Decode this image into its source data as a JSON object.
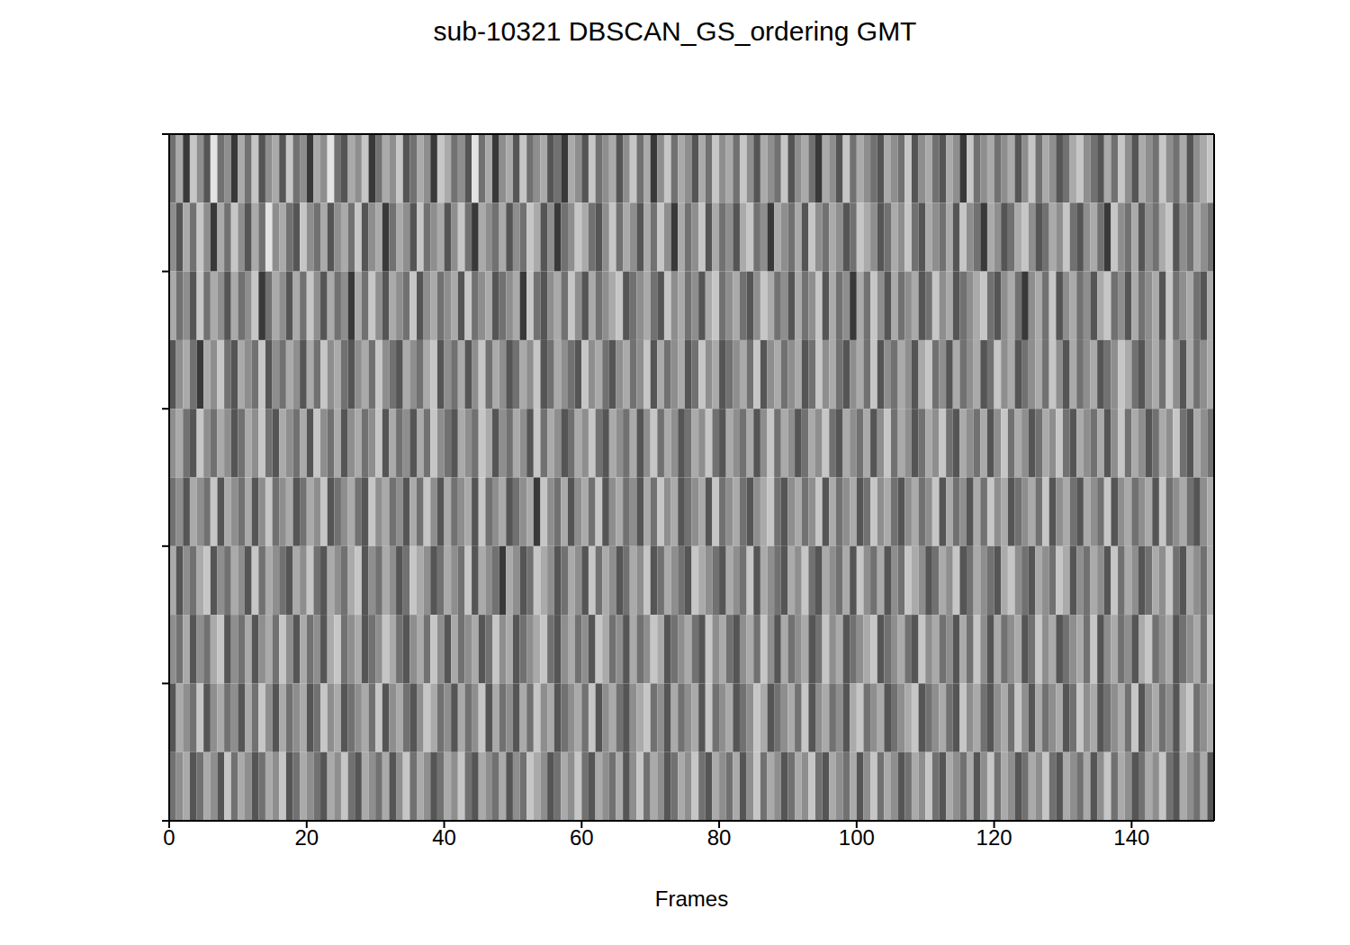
{
  "chart_data": {
    "type": "heatmap",
    "title": "sub-10321 DBSCAN_GS_ordering GMT",
    "x_label": "Frames",
    "xlim": [
      0,
      152
    ],
    "xticks": [
      0,
      20,
      40,
      60,
      80,
      100,
      120,
      140
    ],
    "ylim": [
      0,
      10
    ],
    "yticks": [
      0,
      2,
      4,
      6,
      8,
      10
    ],
    "tick_labels": "x",
    "zlim": [
      0,
      9
    ],
    "cells": [
      [
        4,
        6,
        2,
        7,
        5,
        3,
        8,
        4,
        5,
        2,
        6,
        4,
        7,
        3,
        5,
        6,
        3,
        7,
        4,
        5,
        2,
        6,
        5,
        8,
        4,
        3,
        6,
        5,
        7,
        2,
        4,
        6,
        5,
        7,
        3,
        4,
        6,
        5,
        2,
        7,
        6,
        4,
        5,
        3,
        8,
        4,
        6,
        2,
        5,
        6,
        3,
        7,
        4,
        5,
        6,
        3,
        4,
        2,
        6,
        5,
        3,
        7,
        4,
        5,
        6,
        3,
        5,
        7,
        4,
        6,
        2,
        5,
        7,
        4,
        6,
        5,
        3,
        6,
        4,
        7,
        5,
        6,
        4,
        7,
        5,
        3,
        6,
        5,
        4,
        7,
        3,
        5,
        6,
        4,
        2,
        6,
        5,
        3,
        7,
        4,
        6,
        5,
        4,
        3,
        6,
        5,
        4,
        7,
        3,
        5,
        6,
        4,
        3,
        6,
        5,
        2,
        7,
        4,
        5,
        6,
        4,
        5,
        6,
        3,
        5,
        7,
        4,
        6,
        5,
        3,
        4,
        6,
        7,
        5,
        4,
        3,
        6,
        4,
        7,
        5,
        3,
        6,
        5,
        4,
        7,
        5,
        4,
        6,
        3,
        5,
        6,
        7
      ],
      [
        5,
        3,
        6,
        4,
        7,
        5,
        2,
        6,
        4,
        7,
        5,
        3,
        6,
        4,
        8,
        5,
        6,
        4,
        3,
        7,
        5,
        4,
        6,
        3,
        5,
        6,
        4,
        7,
        3,
        5,
        6,
        2,
        4,
        6,
        5,
        3,
        7,
        4,
        5,
        6,
        3,
        5,
        7,
        4,
        2,
        6,
        5,
        4,
        6,
        3,
        5,
        4,
        7,
        6,
        3,
        5,
        2,
        4,
        5,
        7,
        6,
        4,
        3,
        5,
        7,
        4,
        6,
        5,
        3,
        6,
        4,
        7,
        5,
        2,
        6,
        4,
        5,
        7,
        3,
        6,
        4,
        5,
        3,
        6,
        7,
        4,
        5,
        2,
        6,
        5,
        4,
        6,
        3,
        7,
        5,
        4,
        6,
        5,
        3,
        4,
        7,
        6,
        5,
        3,
        4,
        6,
        5,
        7,
        4,
        3,
        6,
        5,
        4,
        6,
        3,
        7,
        5,
        4,
        2,
        6,
        5,
        3,
        4,
        6,
        7,
        5,
        3,
        4,
        6,
        5,
        7,
        4,
        3,
        5,
        6,
        4,
        2,
        7,
        5,
        4,
        6,
        3,
        5,
        4,
        6,
        7,
        3,
        5,
        4,
        6,
        5,
        4
      ],
      [
        6,
        4,
        5,
        3,
        7,
        4,
        6,
        5,
        3,
        6,
        4,
        5,
        7,
        2,
        4,
        6,
        5,
        3,
        6,
        4,
        7,
        5,
        3,
        6,
        4,
        5,
        2,
        6,
        4,
        7,
        5,
        3,
        6,
        5,
        4,
        7,
        3,
        5,
        6,
        4,
        5,
        6,
        3,
        7,
        4,
        5,
        6,
        3,
        4,
        5,
        6,
        2,
        7,
        4,
        3,
        5,
        6,
        4,
        7,
        5,
        3,
        6,
        4,
        5,
        6,
        7,
        3,
        4,
        5,
        6,
        4,
        3,
        7,
        5,
        6,
        4,
        5,
        3,
        6,
        7,
        4,
        5,
        6,
        4,
        3,
        5,
        7,
        6,
        4,
        5,
        3,
        6,
        4,
        5,
        7,
        3,
        6,
        4,
        5,
        2,
        6,
        4,
        7,
        5,
        3,
        6,
        4,
        5,
        6,
        3,
        4,
        7,
        5,
        6,
        3,
        4,
        5,
        6,
        7,
        4,
        3,
        5,
        6,
        4,
        2,
        5,
        6,
        4,
        7,
        3,
        5,
        6,
        4,
        5,
        3,
        6,
        7,
        4,
        5,
        3,
        6,
        4,
        5,
        6,
        3,
        7,
        4,
        5,
        6,
        4,
        3,
        6
      ],
      [
        3,
        5,
        6,
        4,
        2,
        6,
        5,
        7,
        4,
        3,
        6,
        5,
        4,
        7,
        3,
        5,
        4,
        6,
        5,
        3,
        6,
        4,
        7,
        5,
        6,
        4,
        3,
        5,
        6,
        4,
        7,
        5,
        4,
        3,
        6,
        5,
        4,
        6,
        7,
        3,
        5,
        4,
        6,
        3,
        5,
        7,
        4,
        6,
        5,
        3,
        4,
        6,
        5,
        7,
        3,
        4,
        6,
        5,
        4,
        3,
        7,
        5,
        6,
        4,
        3,
        5,
        6,
        4,
        5,
        7,
        3,
        6,
        4,
        5,
        6,
        3,
        4,
        7,
        5,
        6,
        3,
        4,
        5,
        6,
        4,
        7,
        3,
        5,
        6,
        4,
        5,
        6,
        3,
        4,
        7,
        5,
        6,
        4,
        3,
        5,
        6,
        4,
        7,
        3,
        5,
        4,
        6,
        5,
        3,
        6,
        7,
        4,
        5,
        3,
        6,
        4,
        5,
        6,
        3,
        4,
        7,
        5,
        6,
        3,
        4,
        5,
        6,
        4,
        7,
        5,
        3,
        6,
        4,
        5,
        6,
        3,
        4,
        5,
        7,
        6,
        4,
        3,
        5,
        6,
        4,
        7,
        5,
        3,
        6,
        4,
        5,
        6
      ],
      [
        5,
        6,
        4,
        3,
        7,
        5,
        4,
        6,
        5,
        3,
        4,
        6,
        5,
        7,
        4,
        3,
        6,
        5,
        4,
        6,
        3,
        7,
        5,
        4,
        6,
        3,
        5,
        6,
        4,
        5,
        7,
        3,
        6,
        4,
        5,
        3,
        6,
        4,
        7,
        5,
        4,
        3,
        6,
        5,
        4,
        7,
        6,
        3,
        5,
        4,
        6,
        5,
        3,
        7,
        4,
        6,
        5,
        3,
        4,
        6,
        5,
        7,
        4,
        3,
        6,
        5,
        4,
        6,
        3,
        5,
        7,
        4,
        6,
        5,
        3,
        4,
        6,
        5,
        7,
        4,
        3,
        6,
        5,
        4,
        6,
        3,
        5,
        7,
        4,
        6,
        5,
        3,
        4,
        6,
        5,
        7,
        4,
        3,
        6,
        5,
        4,
        6,
        3,
        5,
        7,
        4,
        6,
        5,
        3,
        4,
        6,
        5,
        7,
        4,
        3,
        6,
        5,
        4,
        6,
        3,
        5,
        7,
        4,
        6,
        5,
        3,
        4,
        6,
        5,
        7,
        4,
        3,
        6,
        5,
        4,
        6,
        3,
        5,
        7,
        4,
        6,
        5,
        3,
        4,
        6,
        5,
        7,
        4,
        3,
        6,
        5,
        4
      ],
      [
        4,
        5,
        3,
        6,
        5,
        4,
        7,
        3,
        6,
        5,
        4,
        6,
        3,
        5,
        7,
        4,
        5,
        6,
        3,
        4,
        6,
        5,
        7,
        3,
        4,
        5,
        6,
        4,
        3,
        7,
        5,
        6,
        4,
        5,
        3,
        6,
        4,
        7,
        5,
        3,
        6,
        4,
        5,
        6,
        3,
        7,
        4,
        5,
        6,
        3,
        4,
        5,
        6,
        2,
        7,
        5,
        4,
        6,
        3,
        5,
        6,
        4,
        7,
        3,
        5,
        6,
        4,
        5,
        3,
        6,
        4,
        7,
        5,
        6,
        3,
        4,
        5,
        6,
        3,
        7,
        4,
        5,
        6,
        4,
        3,
        5,
        6,
        7,
        4,
        3,
        5,
        6,
        4,
        5,
        7,
        3,
        6,
        4,
        5,
        6,
        3,
        4,
        7,
        5,
        6,
        4,
        3,
        5,
        6,
        4,
        5,
        7,
        3,
        6,
        4,
        5,
        3,
        6,
        4,
        7,
        5,
        6,
        3,
        4,
        5,
        6,
        4,
        7,
        3,
        5,
        6,
        4,
        3,
        6,
        5,
        4,
        7,
        3,
        5,
        6,
        4,
        5,
        6,
        3,
        7,
        4,
        5,
        6,
        4,
        3,
        5,
        6
      ],
      [
        6,
        3,
        5,
        4,
        6,
        7,
        3,
        5,
        4,
        6,
        5,
        3,
        7,
        4,
        6,
        5,
        4,
        3,
        6,
        5,
        7,
        4,
        3,
        6,
        5,
        4,
        6,
        7,
        3,
        5,
        4,
        6,
        5,
        3,
        4,
        7,
        6,
        5,
        3,
        4,
        6,
        5,
        4,
        7,
        3,
        6,
        5,
        4,
        2,
        6,
        5,
        3,
        4,
        7,
        6,
        5,
        3,
        4,
        6,
        5,
        3,
        7,
        4,
        6,
        5,
        3,
        4,
        6,
        5,
        7,
        3,
        4,
        6,
        5,
        4,
        3,
        7,
        6,
        5,
        4,
        3,
        6,
        5,
        4,
        7,
        3,
        6,
        5,
        4,
        3,
        6,
        5,
        7,
        4,
        3,
        6,
        5,
        4,
        6,
        3,
        7,
        5,
        4,
        6,
        3,
        5,
        4,
        7,
        6,
        5,
        3,
        4,
        6,
        5,
        7,
        3,
        4,
        6,
        5,
        4,
        3,
        6,
        7,
        5,
        4,
        3,
        6,
        5,
        4,
        7,
        6,
        3,
        5,
        4,
        6,
        5,
        3,
        7,
        4,
        6,
        5,
        3,
        4,
        6,
        5,
        7,
        4,
        3,
        6,
        5,
        4,
        6
      ],
      [
        5,
        4,
        6,
        3,
        5,
        4,
        6,
        7,
        3,
        5,
        4,
        6,
        3,
        5,
        6,
        4,
        7,
        5,
        3,
        6,
        4,
        5,
        3,
        6,
        7,
        4,
        5,
        6,
        3,
        4,
        5,
        7,
        6,
        4,
        3,
        5,
        6,
        4,
        7,
        5,
        3,
        6,
        4,
        5,
        6,
        3,
        4,
        7,
        5,
        6,
        3,
        4,
        5,
        6,
        7,
        4,
        3,
        5,
        6,
        4,
        5,
        3,
        7,
        6,
        4,
        5,
        3,
        6,
        4,
        5,
        7,
        6,
        3,
        4,
        5,
        6,
        4,
        3,
        7,
        5,
        6,
        4,
        3,
        5,
        6,
        4,
        7,
        5,
        3,
        6,
        4,
        5,
        6,
        3,
        4,
        7,
        5,
        6,
        3,
        4,
        5,
        6,
        7,
        3,
        4,
        5,
        6,
        4,
        3,
        7,
        5,
        6,
        4,
        5,
        3,
        6,
        4,
        7,
        5,
        3,
        6,
        4,
        5,
        6,
        3,
        4,
        7,
        5,
        6,
        3,
        4,
        5,
        6,
        4,
        7,
        3,
        5,
        6,
        4,
        5,
        3,
        6,
        7,
        4,
        5,
        6,
        3,
        4,
        5,
        6,
        4,
        7
      ],
      [
        3,
        6,
        5,
        4,
        7,
        3,
        5,
        6,
        4,
        5,
        3,
        6,
        4,
        7,
        5,
        3,
        6,
        4,
        5,
        6,
        3,
        4,
        7,
        5,
        6,
        3,
        4,
        5,
        6,
        4,
        7,
        3,
        5,
        6,
        4,
        3,
        5,
        7,
        6,
        4,
        5,
        3,
        6,
        4,
        5,
        7,
        3,
        6,
        4,
        5,
        3,
        6,
        4,
        7,
        5,
        6,
        3,
        4,
        5,
        6,
        4,
        7,
        3,
        5,
        6,
        4,
        3,
        5,
        6,
        7,
        4,
        5,
        3,
        6,
        4,
        5,
        6,
        3,
        7,
        4,
        5,
        6,
        3,
        4,
        5,
        7,
        6,
        3,
        4,
        5,
        6,
        4,
        7,
        3,
        5,
        6,
        4,
        5,
        3,
        6,
        7,
        4,
        5,
        6,
        3,
        4,
        5,
        6,
        7,
        3,
        4,
        5,
        6,
        4,
        3,
        7,
        5,
        6,
        4,
        3,
        5,
        6,
        4,
        7,
        5,
        3,
        6,
        4,
        5,
        6,
        3,
        4,
        7,
        5,
        6,
        3,
        4,
        5,
        6,
        4,
        7,
        3,
        5,
        6,
        4,
        5,
        3,
        6,
        7,
        4,
        5,
        6
      ],
      [
        4,
        5,
        6,
        3,
        4,
        6,
        5,
        3,
        7,
        4,
        6,
        5,
        3,
        4,
        6,
        5,
        7,
        3,
        4,
        6,
        5,
        4,
        3,
        6,
        5,
        7,
        4,
        3,
        6,
        5,
        4,
        6,
        3,
        5,
        7,
        4,
        6,
        5,
        3,
        4,
        6,
        5,
        7,
        4,
        3,
        6,
        5,
        4,
        6,
        3,
        5,
        4,
        7,
        6,
        5,
        3,
        4,
        6,
        5,
        7,
        4,
        3,
        6,
        5,
        4,
        6,
        3,
        5,
        7,
        4,
        6,
        5,
        3,
        4,
        6,
        5,
        7,
        4,
        3,
        6,
        5,
        4,
        6,
        3,
        5,
        7,
        4,
        6,
        5,
        3,
        4,
        6,
        5,
        7,
        4,
        3,
        6,
        5,
        4,
        6,
        3,
        5,
        7,
        4,
        6,
        5,
        3,
        4,
        6,
        5,
        7,
        4,
        3,
        6,
        5,
        4,
        6,
        3,
        5,
        7,
        4,
        6,
        5,
        3,
        4,
        6,
        5,
        7,
        4,
        3,
        6,
        5,
        4,
        6,
        3,
        5,
        7,
        4,
        6,
        5,
        3,
        4,
        6,
        5,
        7,
        4,
        3,
        6,
        5,
        4,
        6,
        3
      ]
    ]
  }
}
